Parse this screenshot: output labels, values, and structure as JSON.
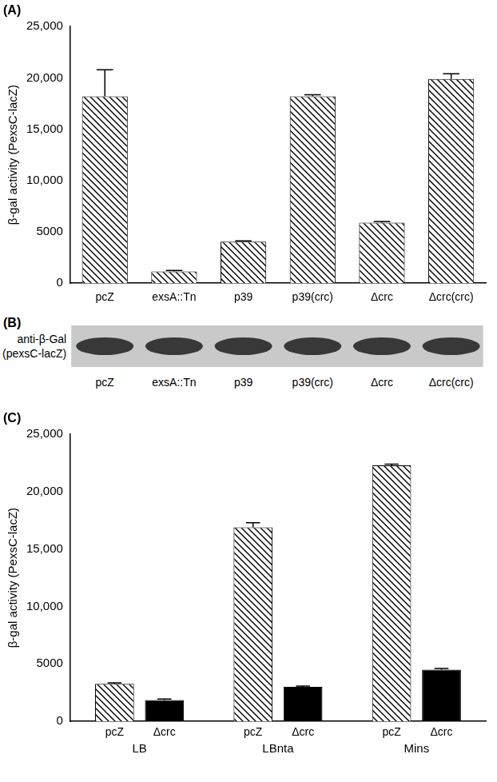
{
  "chart_data": [
    {
      "type": "bar",
      "title": "(A)",
      "y_label": "β-gal activity (PexsC-lacZ)",
      "categories": [
        "pcZ",
        "exsA::Tn",
        "p39",
        "p39(crc)",
        "Δcrc",
        "Δcrc(crc)"
      ],
      "values": [
        18200,
        1150,
        4050,
        18200,
        5900,
        19900
      ],
      "errors": [
        2600,
        100,
        80,
        150,
        120,
        500
      ],
      "color": "#000000",
      "marker": "hatch",
      "ylim": [
        0,
        25000
      ],
      "yticks": [
        0,
        5000,
        {
          "value": 10000,
          "label": "10,000"
        },
        {
          "value": 15000,
          "label": "15,000"
        },
        {
          "value": 20000,
          "label": "20,000"
        },
        {
          "value": 25000,
          "label": "25,000"
        }
      ],
      "grid": false
    },
    {
      "type": "bar",
      "title": "(C)",
      "y_label": "β-gal activity (PexsC-lacZ)",
      "categories": [
        "LB",
        "LBnta",
        "Mins"
      ],
      "series": [
        {
          "name": "pcZ",
          "color": "#000000",
          "marker": "hatch",
          "values": [
            3250,
            16900,
            22300
          ],
          "errors": [
            100,
            400,
            100
          ]
        },
        {
          "name": "Δcrc",
          "color": "#000000",
          "values": [
            1850,
            3000,
            4500
          ],
          "errors": [
            80,
            60,
            100
          ]
        }
      ],
      "ylim": [
        0,
        25000
      ],
      "yticks": [
        0,
        5000,
        {
          "value": 10000,
          "label": "10,000"
        },
        {
          "value": 15000,
          "label": "15,000"
        },
        {
          "value": 20000,
          "label": "20,000"
        },
        {
          "value": 25000,
          "label": "25,000"
        }
      ],
      "grid": false
    }
  ],
  "blot": {
    "panel": "(B)",
    "label": [
      "anti-β-Gal",
      "(pexsC-lacZ)"
    ],
    "lanes": [
      "pcZ",
      "exsA::Tn",
      "p39",
      "p39(crc)",
      "Δcrc",
      "Δcrc(crc)"
    ]
  }
}
